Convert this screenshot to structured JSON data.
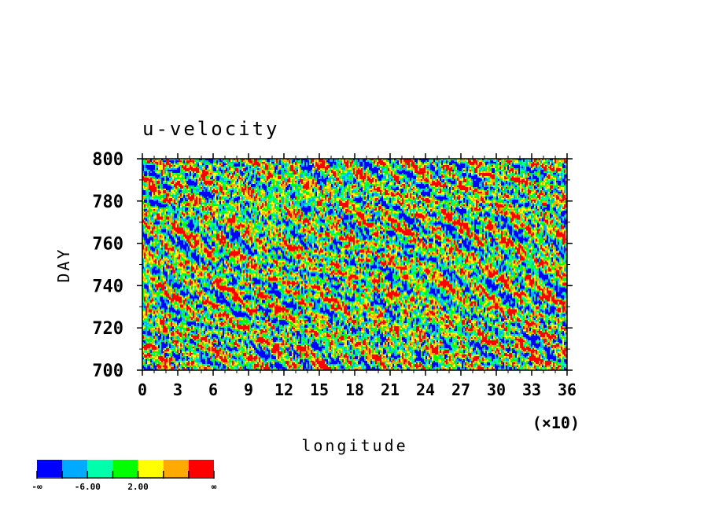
{
  "chart_data": {
    "type": "heatmap",
    "title": "u-velocity",
    "xlabel": "longitude",
    "ylabel": "DAY",
    "x_scale_note": "(×10)",
    "xlim": [
      0,
      36
    ],
    "ylim": [
      700,
      800
    ],
    "x_ticks": [
      "0",
      "3",
      "6",
      "9",
      "12",
      "15",
      "18",
      "21",
      "24",
      "27",
      "30",
      "33",
      "36"
    ],
    "y_ticks": [
      "700",
      "720",
      "740",
      "760",
      "780",
      "800"
    ],
    "colorbar": {
      "levels": [
        -10,
        -6,
        -2,
        2,
        6,
        10
      ],
      "colors": [
        "#0000ff",
        "#00aaff",
        "#00ffaa",
        "#00ff00",
        "#ffff00",
        "#ffaa00",
        "#ff0000"
      ],
      "labels": [
        "-∞",
        "-6.00",
        "2.00",
        "∞"
      ]
    }
  }
}
